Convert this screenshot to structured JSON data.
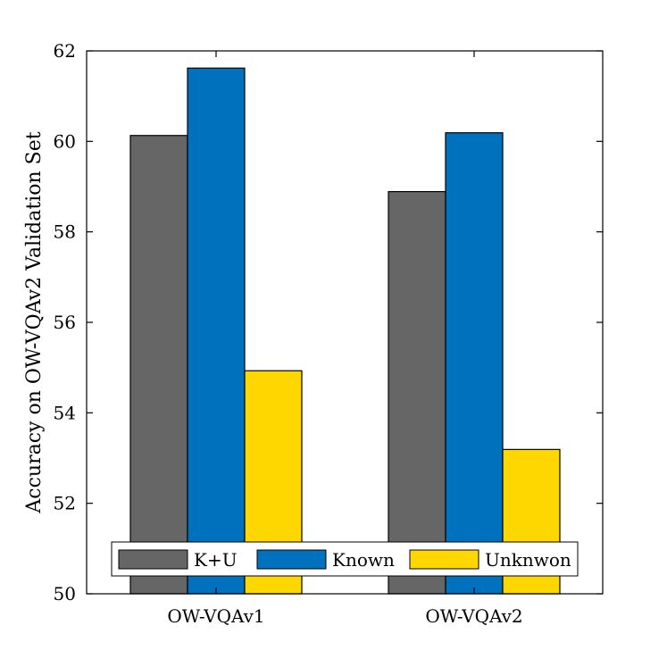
{
  "chart_data": {
    "type": "bar",
    "title": "",
    "xlabel": "",
    "ylabel": "Accuracy on OW-VQAv2 Validation Set",
    "ylim": [
      50,
      62
    ],
    "yticks": [
      50,
      52,
      54,
      56,
      58,
      60,
      62
    ],
    "categories": [
      "OW-VQAv1",
      "OW-VQAv2"
    ],
    "series": [
      {
        "name": "K+U",
        "color": "#666666",
        "values": [
          60.13,
          58.89
        ]
      },
      {
        "name": "Known",
        "color": "#0072BD",
        "values": [
          61.62,
          60.19
        ]
      },
      {
        "name": "Unknwon",
        "color": "#FFD700",
        "values": [
          54.93,
          53.19
        ]
      }
    ],
    "legend": {
      "position": "bottom-inside",
      "orientation": "horizontal"
    },
    "grid": false
  }
}
